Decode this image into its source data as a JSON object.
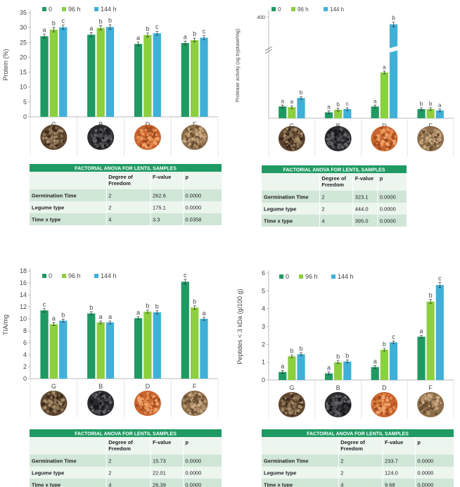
{
  "colors": {
    "s0": "#1f9a63",
    "s96": "#8ccf3f",
    "s144": "#3fb0d8",
    "header": "#1f9a63",
    "row_dark": "#d0e6d7",
    "row_light": "#ecf5ee"
  },
  "seed_icons": [
    "seed-G-icon",
    "seed-B-icon",
    "seed-D-icon",
    "seed-F-icon"
  ],
  "chart_data": [
    {
      "type": "bar",
      "categories": [
        "G",
        "B",
        "D",
        "F"
      ],
      "ylabel": "Protein (%)",
      "ylim": [
        0,
        35
      ],
      "ticks": [
        "0",
        "5",
        "10",
        "15",
        "20",
        "25",
        "30",
        "35"
      ],
      "legend": "top-left",
      "series": [
        {
          "name": "0",
          "values": [
            27.1,
            27.6,
            24.5,
            24.8
          ],
          "letters": [
            "a",
            "a",
            "a",
            "a"
          ]
        },
        {
          "name": "96 h",
          "values": [
            29.3,
            29.9,
            27.5,
            25.8
          ],
          "letters": [
            "b",
            "b",
            "b",
            "b"
          ]
        },
        {
          "name": "144 h",
          "values": [
            30.1,
            30.2,
            28.1,
            26.6
          ],
          "letters": [
            "c",
            "b",
            "c",
            "c"
          ]
        }
      ],
      "anova": {
        "title": "FACTORIAL ANOVA FOR LENTIL SAMPLES",
        "headers": [
          "",
          "Degree of Freedom",
          "F-value",
          "p"
        ],
        "rows": [
          [
            "Germination Time",
            "2",
            "262.6",
            "0.0000"
          ],
          [
            "Legume type",
            "2",
            "175.1",
            "0.0000"
          ],
          [
            "Time x type",
            "4",
            "3.3",
            "0.0358"
          ]
        ]
      }
    },
    {
      "type": "bar",
      "categories": [
        "G",
        "B",
        "D",
        "F"
      ],
      "ylabel": "Protease activity (ug tryptase/mg)",
      "ylim": [
        0,
        400
      ],
      "ticks": [
        "400"
      ],
      "axis_break": true,
      "legend": "top-left",
      "series": [
        {
          "name": "0",
          "values": [
            1.8,
            0.9,
            1.8,
            1.4
          ],
          "letters": [
            "a",
            "a",
            "a",
            "b"
          ]
        },
        {
          "name": "96 h",
          "values": [
            1.7,
            1.3,
            7.0,
            1.4
          ],
          "letters": [
            "a",
            "b",
            "a",
            "b"
          ]
        },
        {
          "name": "144 h",
          "values": [
            3.1,
            1.4,
            300,
            1.2
          ],
          "letters": [
            "b",
            "c",
            "b",
            "a"
          ]
        }
      ],
      "anova": {
        "title": "FACTORIAL ANOVA FOR LENTIL SAMPLES",
        "headers": [
          "",
          "Degree of Freedom",
          "F-value",
          "p"
        ],
        "rows": [
          [
            "Germination Time",
            "2",
            "323.1",
            "0.0000"
          ],
          [
            "Legume type",
            "2",
            "444.0",
            "0.0000"
          ],
          [
            "Time x type",
            "4",
            "395.0",
            "0.0000"
          ]
        ]
      }
    },
    {
      "type": "bar",
      "categories": [
        "G",
        "B",
        "D",
        "F"
      ],
      "ylabel": "TIA/mg",
      "ylim": [
        0,
        18
      ],
      "ticks": [
        "0",
        "2",
        "4",
        "6",
        "8",
        "10",
        "12",
        "14",
        "16",
        "18"
      ],
      "legend": "top-center",
      "series": [
        {
          "name": "0",
          "values": [
            11.4,
            10.9,
            10.1,
            16.2
          ],
          "letters": [
            "c",
            "b",
            "a",
            "c"
          ]
        },
        {
          "name": "96 h",
          "values": [
            9.1,
            9.4,
            11.2,
            11.9
          ],
          "letters": [
            "a",
            "a",
            "b",
            "b"
          ]
        },
        {
          "name": "144 h",
          "values": [
            9.7,
            9.4,
            11.1,
            10.0
          ],
          "letters": [
            "b",
            "a",
            "b",
            "a"
          ]
        }
      ],
      "anova": {
        "title": "FACTORIAL ANOVA FOR LENTIL SAMPLES",
        "headers": [
          "",
          "Degree of Freedom",
          "F-value",
          "p"
        ],
        "rows": [
          [
            "Germination Time",
            "2",
            "15.73",
            "0.0000"
          ],
          [
            "Legume type",
            "2",
            "22.01",
            "0.0000"
          ],
          [
            "Time x type",
            "4",
            "26.39",
            "0.0000"
          ]
        ]
      }
    },
    {
      "type": "bar",
      "categories": [
        "G",
        "B",
        "D",
        "F"
      ],
      "ylabel": "Peptides < 3 kDa (g/100 g)",
      "ylim": [
        0,
        6
      ],
      "ticks": [
        "0",
        "1",
        "2",
        "3",
        "4",
        "5",
        "6"
      ],
      "legend": "top-left",
      "series": [
        {
          "name": "0",
          "values": [
            0.45,
            0.37,
            0.73,
            2.43
          ],
          "letters": [
            "a",
            "a",
            "a",
            "a"
          ]
        },
        {
          "name": "96 h",
          "values": [
            1.33,
            1.0,
            1.7,
            4.4
          ],
          "letters": [
            "b",
            "b",
            "b",
            "b"
          ]
        },
        {
          "name": "144 h",
          "values": [
            1.45,
            1.04,
            2.12,
            5.33
          ],
          "letters": [
            "b",
            "b",
            "c",
            "c"
          ]
        }
      ],
      "anova": {
        "title": "FACTORIAL ANOVA FOR LENTIL SAMPLES",
        "headers": [
          "",
          "Degree of Freedom",
          "F-value",
          "p"
        ],
        "rows": [
          [
            "Germination Time",
            "2",
            "233.7",
            "0.0000"
          ],
          [
            "Legume type",
            "2",
            "124.0",
            "0.0000"
          ],
          [
            "Time x type",
            "4",
            "9.68",
            "0.0000"
          ]
        ]
      }
    }
  ]
}
